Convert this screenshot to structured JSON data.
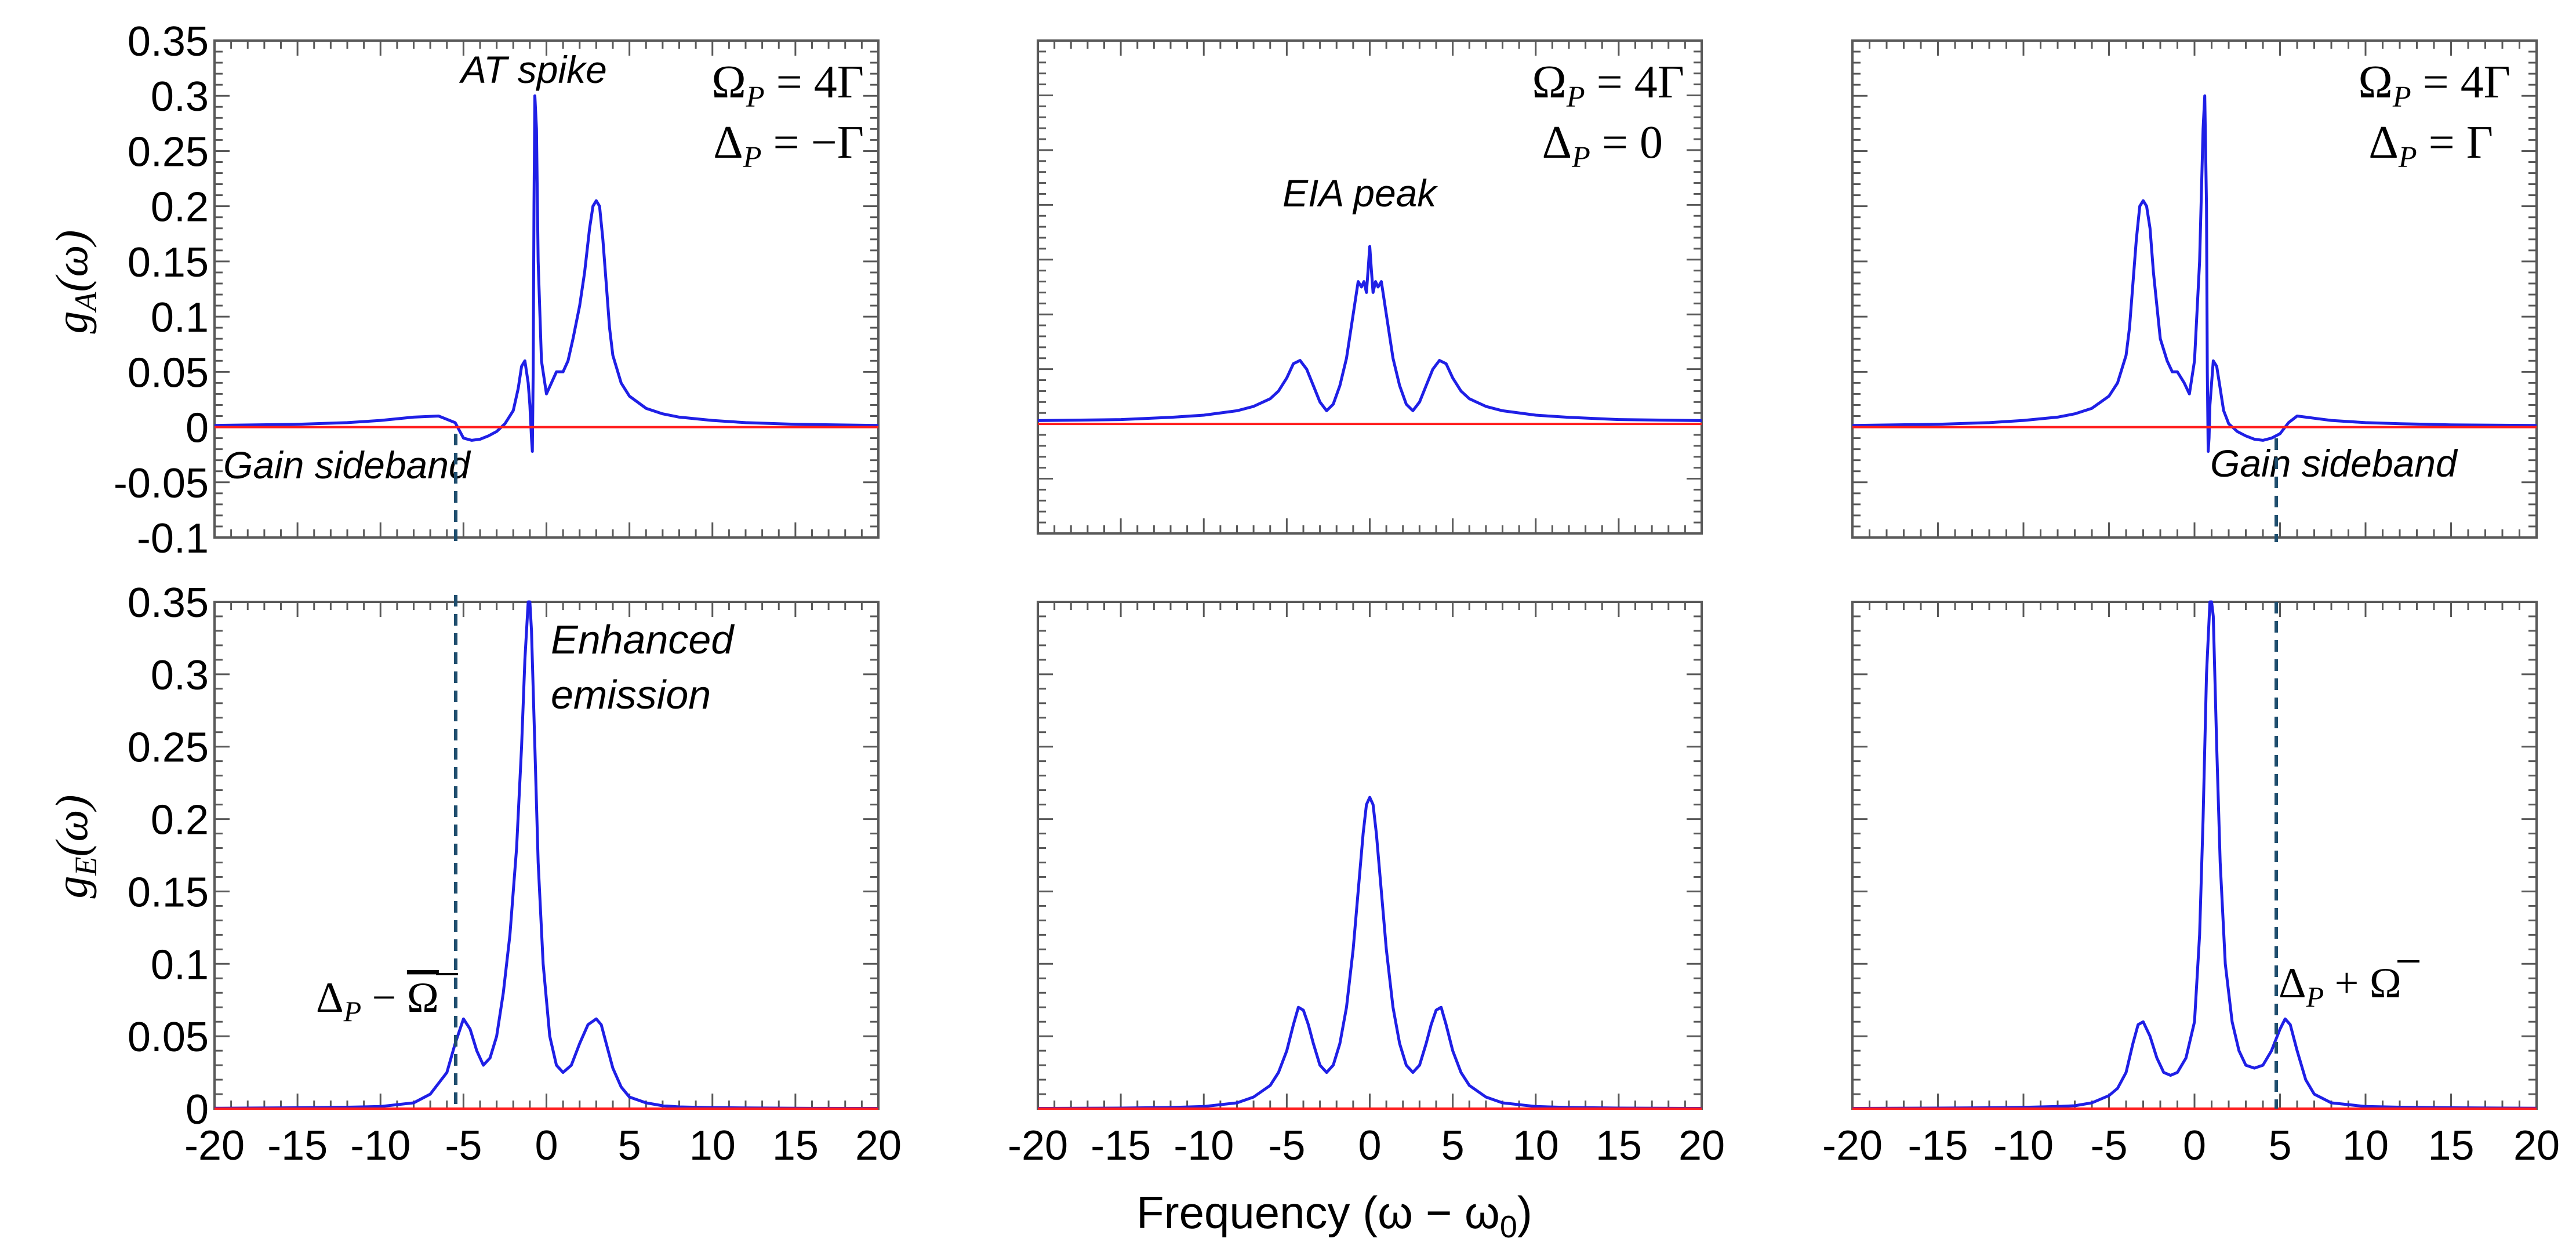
{
  "figure": {
    "xlabel": "Frequency (ω − ω",
    "xlabel_sub": "0",
    "xlabel_close": ")"
  },
  "colors": {
    "curve": "#1f1fe6",
    "baseline": "#ff1f1f",
    "marker": "#1f4e6e",
    "frame": "#595959"
  },
  "chart_data": [
    {
      "id": "gA-left",
      "type": "line",
      "ylabel": "g_A(ω)",
      "xlim": [
        -20,
        20
      ],
      "ylim": [
        -0.1,
        0.35
      ],
      "x_ticks": [
        -20,
        -15,
        -10,
        -5,
        0,
        5,
        10,
        15,
        20
      ],
      "y_ticks": [
        -0.1,
        -0.05,
        0,
        0.05,
        0.1,
        0.15,
        0.2,
        0.25,
        0.3,
        0.35
      ],
      "y_tick_labels": [
        "-0.1",
        "-0.05",
        "0",
        "0.05",
        "0.1",
        "0.15",
        "0.2",
        "0.25",
        "0.3",
        "0.35"
      ],
      "params": [
        "Ω_P = 4Γ",
        "Δ_P = −Γ"
      ],
      "annotations": [
        "AT spike",
        "Gain sideband"
      ],
      "marker_x": -5.1,
      "series": [
        {
          "name": "g_A",
          "x": [
            -20,
            -15,
            -12,
            -10,
            -8,
            -6.5,
            -5.5,
            -5,
            -4.5,
            -4,
            -3.5,
            -3,
            -2.5,
            -2,
            -1.7,
            -1.5,
            -1.3,
            -1.1,
            -1.0,
            -0.9,
            -0.85,
            -0.8,
            -0.75,
            -0.7,
            -0.6,
            -0.5,
            -0.3,
            0,
            0.3,
            0.6,
            1,
            1.3,
            1.6,
            2,
            2.3,
            2.6,
            2.8,
            3,
            3.2,
            3.4,
            3.6,
            3.8,
            4,
            4.5,
            5,
            6,
            7,
            8,
            10,
            12,
            15,
            20
          ],
          "y": [
            0.0015,
            0.0025,
            0.004,
            0.006,
            0.009,
            0.01,
            0.004,
            -0.01,
            -0.012,
            -0.011,
            -0.008,
            -0.004,
            0.003,
            0.015,
            0.035,
            0.055,
            0.06,
            0.04,
            0.02,
            -0.01,
            -0.022,
            0.05,
            0.2,
            0.3,
            0.27,
            0.15,
            0.06,
            0.03,
            0.04,
            0.05,
            0.05,
            0.06,
            0.08,
            0.11,
            0.14,
            0.18,
            0.2,
            0.205,
            0.2,
            0.17,
            0.13,
            0.09,
            0.065,
            0.04,
            0.028,
            0.017,
            0.012,
            0.009,
            0.006,
            0.004,
            0.0025,
            0.0015
          ]
        },
        {
          "name": "zero",
          "x": [
            -20,
            20
          ],
          "y": [
            0,
            0
          ]
        }
      ]
    },
    {
      "id": "gA-middle",
      "type": "line",
      "ylabel": "",
      "xlim": [
        -20,
        20
      ],
      "ylim": [
        -0.1,
        0.35
      ],
      "x_ticks": [
        -20,
        -15,
        -10,
        -5,
        0,
        5,
        10,
        15,
        20
      ],
      "y_ticks": [
        -0.1,
        -0.05,
        0,
        0.05,
        0.1,
        0.15,
        0.2,
        0.25,
        0.3,
        0.35
      ],
      "y_tick_labels": [],
      "params": [
        "Ω_P = 4Γ",
        "Δ_P = 0"
      ],
      "annotations": [
        "EIA peak"
      ],
      "marker_x": null,
      "series": [
        {
          "name": "g_A",
          "x": [
            -20,
            -15,
            -12,
            -10,
            -8,
            -7,
            -6,
            -5.5,
            -5,
            -4.6,
            -4.2,
            -3.8,
            -3.4,
            -3,
            -2.6,
            -2.2,
            -1.8,
            -1.4,
            -1.0,
            -0.7,
            -0.5,
            -0.35,
            -0.2,
            -0.1,
            0,
            0.1,
            0.2,
            0.35,
            0.5,
            0.7,
            1.0,
            1.4,
            1.8,
            2.2,
            2.6,
            3,
            3.4,
            3.8,
            4.2,
            4.6,
            5,
            5.5,
            6,
            7,
            8,
            10,
            12,
            15,
            20
          ],
          "y": [
            0.003,
            0.004,
            0.006,
            0.008,
            0.012,
            0.016,
            0.023,
            0.03,
            0.042,
            0.055,
            0.058,
            0.05,
            0.035,
            0.02,
            0.012,
            0.018,
            0.035,
            0.06,
            0.1,
            0.13,
            0.125,
            0.13,
            0.12,
            0.14,
            0.162,
            0.14,
            0.12,
            0.13,
            0.125,
            0.13,
            0.1,
            0.06,
            0.035,
            0.018,
            0.012,
            0.02,
            0.035,
            0.05,
            0.058,
            0.055,
            0.042,
            0.03,
            0.023,
            0.016,
            0.012,
            0.008,
            0.006,
            0.004,
            0.003
          ]
        },
        {
          "name": "zero",
          "x": [
            -20,
            20
          ],
          "y": [
            0,
            0
          ]
        }
      ]
    },
    {
      "id": "gA-right",
      "type": "line",
      "ylabel": "",
      "xlim": [
        -20,
        20
      ],
      "ylim": [
        -0.1,
        0.35
      ],
      "x_ticks": [
        -20,
        -15,
        -10,
        -5,
        0,
        5,
        10,
        15,
        20
      ],
      "y_ticks": [
        -0.1,
        -0.05,
        0,
        0.05,
        0.1,
        0.15,
        0.2,
        0.25,
        0.3,
        0.35
      ],
      "y_tick_labels": [],
      "params": [
        "Ω_P = 4Γ",
        "Δ_P = Γ"
      ],
      "annotations": [
        "Gain sideband"
      ],
      "marker_x": 5.3,
      "series": [
        {
          "name": "g_A",
          "x": [
            -20,
            -15,
            -12,
            -10,
            -8,
            -7,
            -6,
            -5,
            -4.5,
            -4,
            -3.8,
            -3.6,
            -3.4,
            -3.2,
            -3.0,
            -2.8,
            -2.6,
            -2.4,
            -2.2,
            -2,
            -1.6,
            -1.3,
            -1.0,
            -0.6,
            -0.3,
            0,
            0.3,
            0.5,
            0.6,
            0.7,
            0.75,
            0.8,
            0.85,
            0.9,
            1.0,
            1.1,
            1.3,
            1.5,
            1.7,
            2,
            2.5,
            3,
            3.5,
            4,
            4.5,
            5,
            5.5,
            6,
            6.5,
            7,
            8,
            10,
            12,
            15,
            20
          ],
          "y": [
            0.0015,
            0.0025,
            0.004,
            0.006,
            0.009,
            0.012,
            0.017,
            0.028,
            0.04,
            0.065,
            0.09,
            0.13,
            0.17,
            0.2,
            0.205,
            0.2,
            0.18,
            0.14,
            0.11,
            0.08,
            0.06,
            0.05,
            0.05,
            0.04,
            0.03,
            0.06,
            0.15,
            0.27,
            0.3,
            0.2,
            0.05,
            -0.022,
            -0.01,
            0.02,
            0.04,
            0.06,
            0.055,
            0.035,
            0.015,
            0.003,
            -0.004,
            -0.008,
            -0.011,
            -0.012,
            -0.01,
            -0.006,
            0.004,
            0.01,
            0.009,
            0.008,
            0.006,
            0.004,
            0.003,
            0.002,
            0.0015
          ]
        },
        {
          "name": "zero",
          "x": [
            -20,
            20
          ],
          "y": [
            0,
            0
          ]
        }
      ]
    },
    {
      "id": "gE-left",
      "type": "line",
      "ylabel": "g_E(ω)",
      "xlim": [
        -20,
        20
      ],
      "ylim": [
        0,
        0.35
      ],
      "x_ticks": [
        -20,
        -15,
        -10,
        -5,
        0,
        5,
        10,
        15,
        20
      ],
      "x_tick_labels": [
        "-20",
        "-15",
        "-10",
        "-5",
        "0",
        "5",
        "10",
        "15",
        "20"
      ],
      "y_ticks": [
        0,
        0.05,
        0.1,
        0.15,
        0.2,
        0.25,
        0.3,
        0.35
      ],
      "y_tick_labels": [
        "0",
        "0.05",
        "0.1",
        "0.15",
        "0.2",
        "0.25",
        "0.3",
        "0.35"
      ],
      "annotations": [
        "Enhanced",
        "emission",
        "Δ_P − Ω̄"
      ],
      "marker_x": -5.0,
      "series": [
        {
          "name": "g_E",
          "x": [
            -20,
            -15,
            -12,
            -10,
            -8,
            -7,
            -6,
            -5.5,
            -5,
            -4.6,
            -4.2,
            -3.8,
            -3.4,
            -3,
            -2.6,
            -2.2,
            -1.8,
            -1.5,
            -1.3,
            -1.1,
            -1.0,
            -0.9,
            -0.7,
            -0.5,
            -0.2,
            0.2,
            0.6,
            1,
            1.5,
            2,
            2.5,
            3,
            3.3,
            3.6,
            4,
            4.5,
            5,
            6,
            7,
            8,
            10,
            12,
            15,
            20
          ],
          "y": [
            0.0003,
            0.0006,
            0.001,
            0.0015,
            0.004,
            0.01,
            0.025,
            0.045,
            0.062,
            0.055,
            0.04,
            0.03,
            0.035,
            0.05,
            0.08,
            0.12,
            0.18,
            0.25,
            0.31,
            0.35,
            0.35,
            0.33,
            0.25,
            0.17,
            0.1,
            0.05,
            0.03,
            0.025,
            0.03,
            0.045,
            0.058,
            0.062,
            0.058,
            0.045,
            0.028,
            0.015,
            0.008,
            0.004,
            0.002,
            0.0012,
            0.0007,
            0.0005,
            0.0003,
            0.0002
          ]
        },
        {
          "name": "zero",
          "x": [
            -20,
            20
          ],
          "y": [
            0,
            0
          ]
        }
      ]
    },
    {
      "id": "gE-middle",
      "type": "line",
      "ylabel": "",
      "xlim": [
        -20,
        20
      ],
      "ylim": [
        0,
        0.35
      ],
      "x_ticks": [
        -20,
        -15,
        -10,
        -5,
        0,
        5,
        10,
        15,
        20
      ],
      "x_tick_labels": [
        "-20",
        "-15",
        "-10",
        "-5",
        "0",
        "5",
        "10",
        "15",
        "20"
      ],
      "y_ticks": [
        0,
        0.05,
        0.1,
        0.15,
        0.2,
        0.25,
        0.3,
        0.35
      ],
      "y_tick_labels": [],
      "annotations": [],
      "marker_x": null,
      "series": [
        {
          "name": "g_E",
          "x": [
            -20,
            -15,
            -12,
            -10,
            -8,
            -7,
            -6,
            -5.5,
            -5,
            -4.6,
            -4.3,
            -4,
            -3.7,
            -3.4,
            -3,
            -2.6,
            -2.2,
            -1.8,
            -1.4,
            -1,
            -0.7,
            -0.4,
            -0.2,
            0,
            0.2,
            0.4,
            0.7,
            1,
            1.4,
            1.8,
            2.2,
            2.6,
            3,
            3.4,
            3.7,
            4,
            4.3,
            4.6,
            5,
            5.5,
            6,
            7,
            8,
            10,
            12,
            15,
            20
          ],
          "y": [
            0.0002,
            0.0004,
            0.0008,
            0.0015,
            0.004,
            0.008,
            0.016,
            0.025,
            0.04,
            0.058,
            0.07,
            0.068,
            0.058,
            0.045,
            0.03,
            0.025,
            0.03,
            0.045,
            0.07,
            0.11,
            0.15,
            0.19,
            0.21,
            0.215,
            0.21,
            0.19,
            0.15,
            0.11,
            0.07,
            0.045,
            0.03,
            0.025,
            0.03,
            0.045,
            0.058,
            0.068,
            0.07,
            0.058,
            0.04,
            0.025,
            0.016,
            0.008,
            0.004,
            0.0015,
            0.0008,
            0.0004,
            0.0002
          ]
        },
        {
          "name": "zero",
          "x": [
            -20,
            20
          ],
          "y": [
            0,
            0
          ]
        }
      ]
    },
    {
      "id": "gE-right",
      "type": "line",
      "ylabel": "",
      "xlim": [
        -20,
        20
      ],
      "ylim": [
        0,
        0.35
      ],
      "x_ticks": [
        -20,
        -15,
        -10,
        -5,
        0,
        5,
        10,
        15,
        20
      ],
      "x_tick_labels": [
        "-20",
        "-15",
        "-10",
        "-5",
        "0",
        "5",
        "10",
        "15",
        "20"
      ],
      "y_ticks": [
        0,
        0.05,
        0.1,
        0.15,
        0.2,
        0.25,
        0.3,
        0.35
      ],
      "y_tick_labels": [],
      "annotations": [
        "Δ_P + Ω̄"
      ],
      "marker_x": 5.3,
      "series": [
        {
          "name": "g_E",
          "x": [
            -20,
            -15,
            -12,
            -10,
            -8,
            -7,
            -6,
            -5,
            -4.5,
            -4,
            -3.6,
            -3.3,
            -3,
            -2.6,
            -2.2,
            -1.8,
            -1.4,
            -1,
            -0.5,
            0,
            0.3,
            0.5,
            0.7,
            0.9,
            1.0,
            1.1,
            1.3,
            1.5,
            1.8,
            2.2,
            2.6,
            3,
            3.5,
            4,
            4.5,
            5,
            5.3,
            5.6,
            6,
            6.5,
            7,
            8,
            10,
            12,
            15,
            20
          ],
          "y": [
            0.0002,
            0.0004,
            0.0006,
            0.0009,
            0.0015,
            0.002,
            0.004,
            0.009,
            0.014,
            0.025,
            0.045,
            0.058,
            0.06,
            0.05,
            0.035,
            0.025,
            0.023,
            0.025,
            0.035,
            0.06,
            0.12,
            0.2,
            0.3,
            0.35,
            0.35,
            0.34,
            0.25,
            0.17,
            0.1,
            0.06,
            0.04,
            0.03,
            0.028,
            0.03,
            0.04,
            0.055,
            0.062,
            0.058,
            0.04,
            0.02,
            0.01,
            0.004,
            0.0015,
            0.001,
            0.0006,
            0.0003
          ]
        },
        {
          "name": "zero",
          "x": [
            -20,
            20
          ],
          "y": [
            0,
            0
          ]
        }
      ]
    }
  ]
}
